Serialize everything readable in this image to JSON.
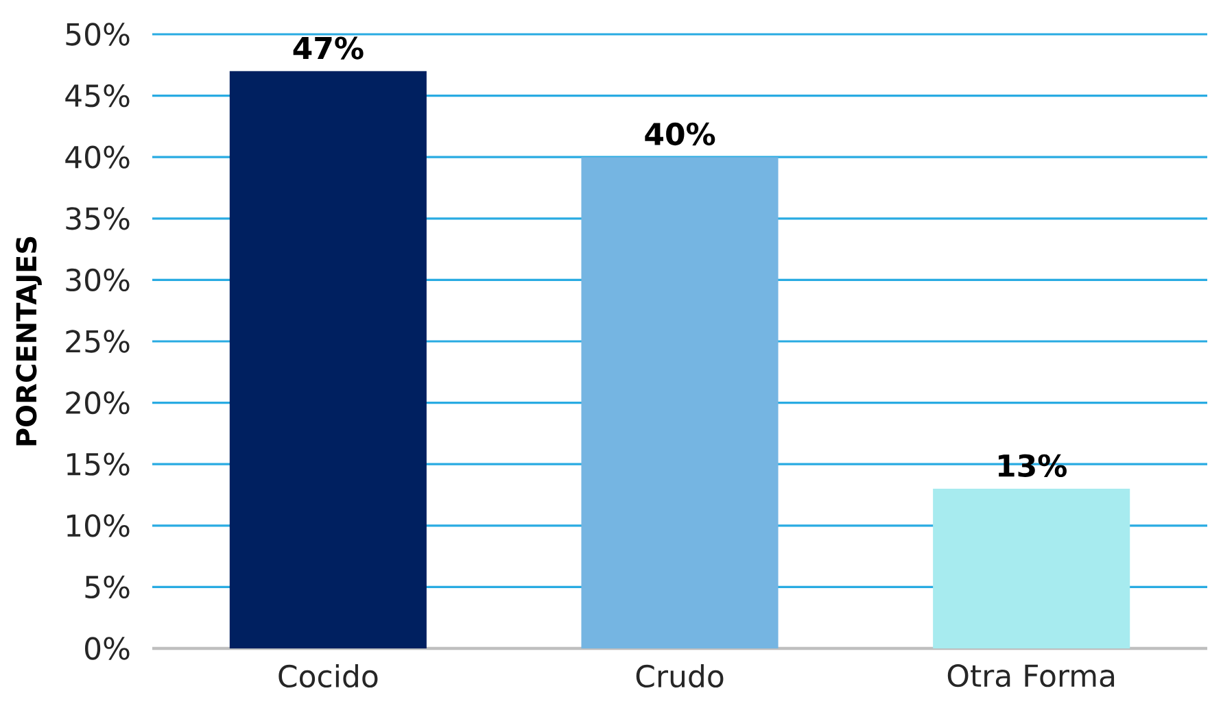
{
  "chart_data": {
    "type": "bar",
    "ylabel": "PORCENTAJES",
    "categories": [
      "Cocido",
      "Crudo",
      "Otra Forma"
    ],
    "values": [
      47,
      40,
      13
    ],
    "colors": [
      "#002060",
      "#75b5e2",
      "#a7ebef"
    ],
    "value_labels": [
      "47%",
      "40%",
      "13%"
    ],
    "ylim": [
      0,
      50
    ],
    "yticks": [
      {
        "value": 0,
        "label": "0%"
      },
      {
        "value": 5,
        "label": "5%"
      },
      {
        "value": 10,
        "label": "10%"
      },
      {
        "value": 15,
        "label": "15%"
      },
      {
        "value": 20,
        "label": "20%"
      },
      {
        "value": 25,
        "label": "25%"
      },
      {
        "value": 30,
        "label": "30%"
      },
      {
        "value": 35,
        "label": "35%"
      },
      {
        "value": 40,
        "label": "40%"
      },
      {
        "value": 45,
        "label": "45%"
      },
      {
        "value": 50,
        "label": "50%"
      }
    ],
    "grid": "y"
  }
}
